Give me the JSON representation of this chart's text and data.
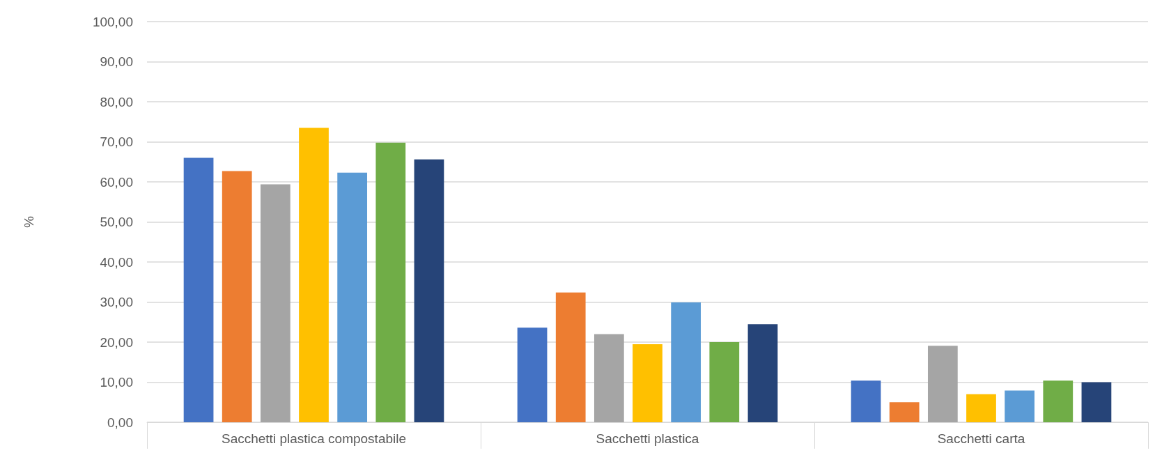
{
  "chart_data": {
    "type": "bar",
    "ylabel": "%",
    "categories": [
      "Sacchetti plastica compostabile",
      "Sacchetti plastica",
      "Sacchetti carta"
    ],
    "series": [
      {
        "color": "#4472c4",
        "values": [
          66.0,
          23.6,
          10.4
        ]
      },
      {
        "color": "#ed7d31",
        "values": [
          62.7,
          32.4,
          5.0
        ]
      },
      {
        "color": "#a5a5a5",
        "values": [
          59.4,
          22.0,
          19.1
        ]
      },
      {
        "color": "#ffc000",
        "values": [
          73.5,
          19.5,
          7.0
        ]
      },
      {
        "color": "#5b9bd5",
        "values": [
          62.3,
          29.9,
          7.9
        ]
      },
      {
        "color": "#70ad47",
        "values": [
          69.8,
          20.0,
          10.4
        ]
      },
      {
        "color": "#264478",
        "values": [
          65.6,
          24.5,
          10.0
        ]
      }
    ],
    "ylim": [
      0,
      100
    ],
    "yticks": [
      {
        "value": 0,
        "label": "0,00"
      },
      {
        "value": 10,
        "label": "10,00"
      },
      {
        "value": 20,
        "label": "20,00"
      },
      {
        "value": 30,
        "label": "30,00"
      },
      {
        "value": 40,
        "label": "40,00"
      },
      {
        "value": 50,
        "label": "50,00"
      },
      {
        "value": 60,
        "label": "60,00"
      },
      {
        "value": 70,
        "label": "70,00"
      },
      {
        "value": 80,
        "label": "80,00"
      },
      {
        "value": 90,
        "label": "90,00"
      },
      {
        "value": 100,
        "label": "100,00"
      }
    ],
    "grid": "y"
  }
}
